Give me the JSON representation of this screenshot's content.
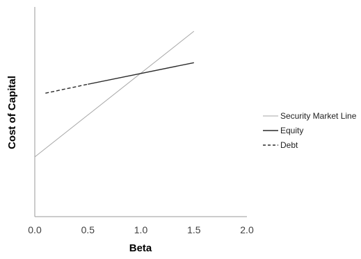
{
  "chart_data": {
    "type": "line",
    "xlabel": "Beta",
    "ylabel": "Cost of Capital",
    "xlim": [
      0,
      2
    ],
    "x_ticks": [
      "0.0",
      "0.5",
      "1.0",
      "1.5",
      "2.0"
    ],
    "y_ticks": [],
    "grid": false,
    "legend_position": "right",
    "series": [
      {
        "name": "Security Market Line",
        "color": "#a6a6a6",
        "dash": "solid",
        "x": [
          0.0,
          1.5
        ],
        "y": [
          0.05,
          0.19
        ]
      },
      {
        "name": "Equity",
        "color": "#2b2b2b",
        "dash": "solid",
        "x": [
          0.5,
          1.5
        ],
        "y": [
          0.131,
          0.155
        ]
      },
      {
        "name": "Debt",
        "color": "#2b2b2b",
        "dash": "dashed",
        "x": [
          0.1,
          0.5
        ],
        "y": [
          0.121,
          0.131
        ]
      }
    ]
  }
}
